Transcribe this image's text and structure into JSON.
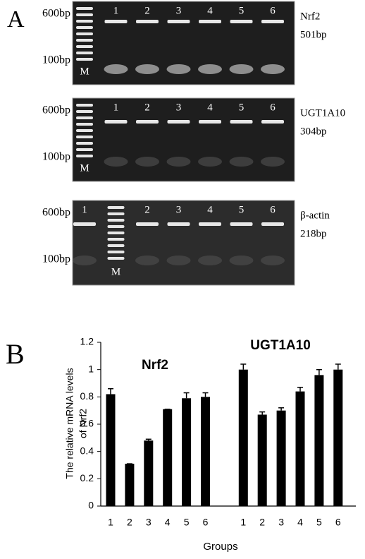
{
  "panel_a": {
    "label": "A",
    "gels": [
      {
        "marker_top": "600bp",
        "marker_bottom": "100bp",
        "lanes": [
          "M",
          "1",
          "2",
          "3",
          "4",
          "5",
          "6"
        ],
        "gene": "Nrf2",
        "size": "501bp"
      },
      {
        "marker_top": "600bp",
        "marker_bottom": "100bp",
        "lanes": [
          "M",
          "1",
          "2",
          "3",
          "4",
          "5",
          "6"
        ],
        "gene": "UGT1A10",
        "size": "304bp"
      },
      {
        "marker_top": "600bp",
        "marker_bottom": "100bp",
        "lanes": [
          "1",
          "M",
          "2",
          "3",
          "4",
          "5",
          "6"
        ],
        "gene": "β-actin",
        "size": "218bp"
      }
    ]
  },
  "chart_data": {
    "type": "bar",
    "panel_label": "B",
    "y_label": [
      "The relative mRNA levels",
      "of Nrf2"
    ],
    "x_label": "Groups",
    "group_labels": [
      "Nrf2",
      "UGT1A10"
    ],
    "categories": [
      "1",
      "2",
      "3",
      "4",
      "5",
      "6",
      null,
      "1",
      "2",
      "3",
      "4",
      "5",
      "6"
    ],
    "values": [
      0.82,
      0.31,
      0.48,
      0.71,
      0.79,
      0.8,
      null,
      1.0,
      0.67,
      0.7,
      0.84,
      0.96,
      1.0
    ],
    "errors": [
      0.04,
      0,
      0.01,
      0,
      0.04,
      0.03,
      null,
      0.04,
      0.02,
      0.02,
      0.03,
      0.04,
      0.04
    ],
    "color": "#000000",
    "ylim": [
      0,
      1.2
    ],
    "yticks": [
      0,
      0.2,
      0.4,
      0.6,
      0.8,
      1,
      1.2
    ]
  }
}
